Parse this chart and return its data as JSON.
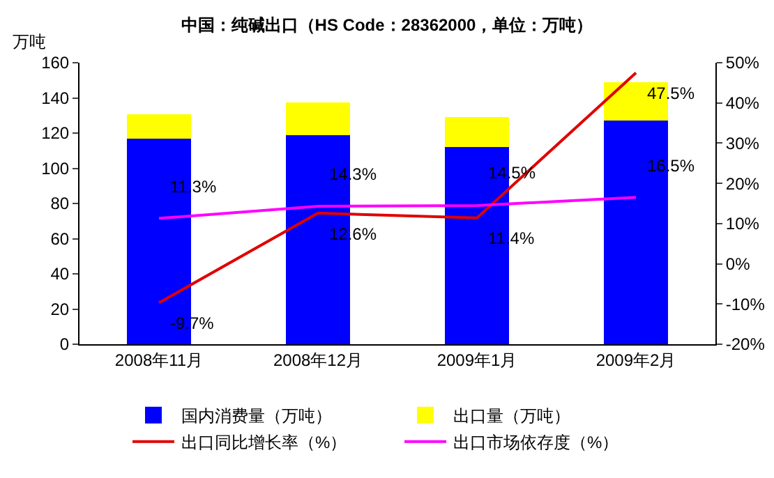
{
  "chart_data": {
    "type": "bar",
    "title": "中国：纯碱出口（HS Code：28362000，单位：万吨）",
    "ylabel": "万吨",
    "categories": [
      "2008年11月",
      "2008年12月",
      "2009年1月",
      "2009年2月"
    ],
    "stacked": true,
    "series": [
      {
        "name": "国内消费量（万吨）",
        "type": "bar",
        "color": "#0000ff",
        "values": [
          117,
          119,
          112,
          127
        ]
      },
      {
        "name": "出口量（万吨）",
        "type": "bar",
        "color": "#ffff00",
        "values": [
          13.5,
          18.5,
          17,
          22
        ]
      },
      {
        "name": "出口同比增长率（%）",
        "type": "line",
        "axis": "y2",
        "color": "#e00000",
        "values": [
          -9.7,
          12.6,
          11.4,
          47.5
        ],
        "value_labels": [
          "-9.7%",
          "12.6%",
          "11.4%",
          "47.5%"
        ]
      },
      {
        "name": "出口市场依存度（%）",
        "type": "line",
        "axis": "y2",
        "color": "#ff00ff",
        "values": [
          11.3,
          14.3,
          14.5,
          16.5
        ],
        "value_labels": [
          "11.3%",
          "14.3%",
          "14.5%",
          "16.5%"
        ]
      }
    ],
    "ylim": [
      0,
      160
    ],
    "yticks": [
      0,
      20,
      40,
      60,
      80,
      100,
      120,
      140,
      160
    ],
    "y2lim": [
      -20,
      50
    ],
    "y2ticks": [
      {
        "value": -20,
        "label": "-20%"
      },
      {
        "value": -10,
        "label": "-10%"
      },
      {
        "value": 0,
        "label": "0%"
      },
      {
        "value": 10,
        "label": "10%"
      },
      {
        "value": 20,
        "label": "20%"
      },
      {
        "value": 30,
        "label": "30%"
      },
      {
        "value": 40,
        "label": "40%"
      },
      {
        "value": 50,
        "label": "50%"
      }
    ],
    "grid": false,
    "legend": "bottom",
    "marker": "none",
    "line_style": "solid"
  }
}
